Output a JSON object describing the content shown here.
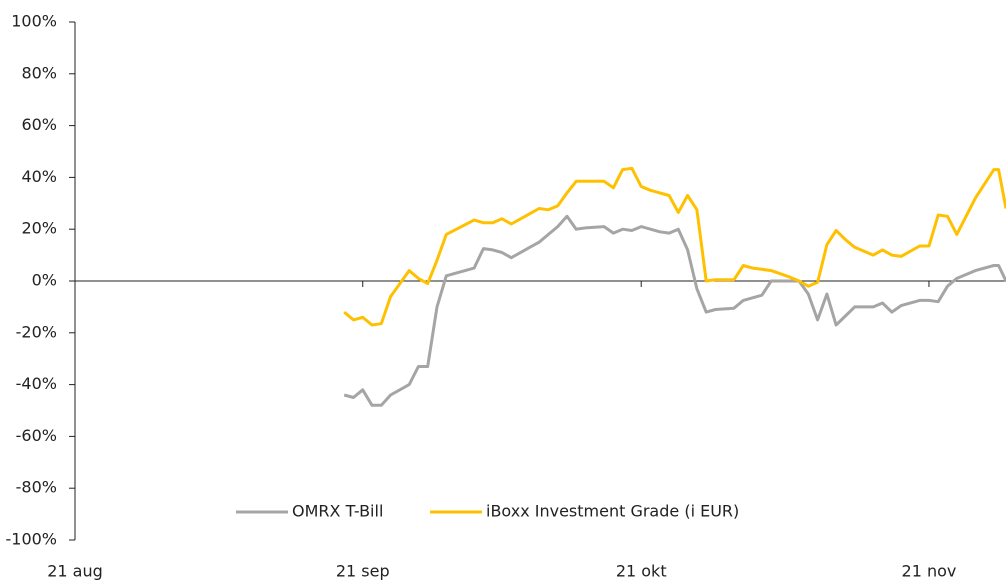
{
  "chart_data": {
    "type": "line",
    "x": [
      29,
      30,
      31,
      32,
      33,
      34,
      36,
      37,
      38,
      39,
      40,
      43,
      44,
      45,
      46,
      47,
      49,
      50,
      51,
      52,
      53,
      54,
      55,
      57,
      58,
      59,
      60,
      61,
      62,
      63,
      64,
      65,
      66,
      67,
      68,
      69,
      71,
      72,
      73,
      74,
      75,
      77,
      78,
      79,
      80,
      81,
      82,
      83,
      84,
      86,
      87,
      88,
      89,
      91,
      92,
      93,
      94,
      95,
      97,
      99,
      99.5,
      100.3
    ],
    "series": [
      {
        "name": "OMRX T-Bill",
        "color": "#a5a5a5",
        "values": [
          -44,
          -45,
          -42,
          -48,
          -48,
          -44,
          -40,
          -33,
          -33,
          -10,
          2,
          5,
          12.5,
          12,
          11,
          9,
          13,
          15,
          18,
          21,
          25,
          20,
          20.5,
          21,
          18.5,
          20,
          19.5,
          21,
          20,
          19,
          18.5,
          20,
          12,
          -3,
          -12,
          -11,
          -10.5,
          -7.5,
          -6.5,
          -5.5,
          0,
          0,
          0,
          -5,
          -15,
          -5,
          -17,
          -13.5,
          -10,
          -10,
          -8.5,
          -12,
          -9.5,
          -7.5,
          -7.5,
          -8,
          -2,
          1,
          4,
          6,
          6,
          0
        ]
      },
      {
        "name": "iBoxx Investment Grade (i EUR)",
        "color": "#ffc000",
        "values": [
          -12,
          -15,
          -14,
          -17,
          -16.5,
          -6,
          4,
          1,
          -1,
          8,
          18,
          23.5,
          22.5,
          22.5,
          24,
          22,
          26,
          28,
          27.5,
          29,
          34,
          38.5,
          38.5,
          38.5,
          36,
          43,
          43.5,
          36.5,
          35,
          34,
          33,
          26.5,
          33,
          27.5,
          0,
          0.5,
          0.5,
          6,
          5,
          4.5,
          4,
          1.5,
          0,
          -2,
          -0.5,
          14,
          19.5,
          16,
          13,
          10,
          12,
          10,
          9.5,
          13.5,
          13.5,
          25.5,
          25,
          18,
          32,
          43,
          43,
          28
        ]
      }
    ],
    "xlim": [
      0,
      100.3
    ],
    "xticks": [
      {
        "value": 0,
        "label": "21 aug"
      },
      {
        "value": 31,
        "label": "21 sep"
      },
      {
        "value": 61,
        "label": "21 okt"
      },
      {
        "value": 92,
        "label": "21 nov"
      }
    ],
    "ylim": [
      -100,
      100
    ],
    "yticks": [
      {
        "value": -100,
        "label": "-100%"
      },
      {
        "value": -80,
        "label": "-80%"
      },
      {
        "value": -60,
        "label": "-60%"
      },
      {
        "value": -40,
        "label": "-40%"
      },
      {
        "value": -20,
        "label": "-20%"
      },
      {
        "value": 0,
        "label": "0%"
      },
      {
        "value": 20,
        "label": "20%"
      },
      {
        "value": 40,
        "label": "40%"
      },
      {
        "value": 60,
        "label": "60%"
      },
      {
        "value": 80,
        "label": "80%"
      },
      {
        "value": 100,
        "label": "100%"
      }
    ],
    "legend": "bottom"
  }
}
